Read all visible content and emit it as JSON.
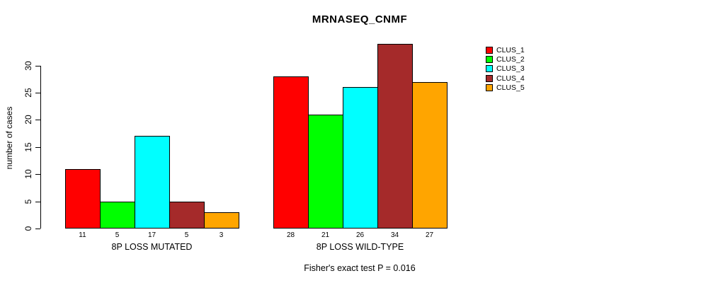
{
  "title": "MRNASEQ_CNMF",
  "caption": "Fisher's exact test P = 0.016",
  "chart_data": {
    "type": "bar",
    "title": "MRNASEQ_CNMF",
    "ylabel": "number of cases",
    "xlabel": "",
    "categories": [
      "8P LOSS MUTATED",
      "8P LOSS WILD-TYPE"
    ],
    "series": [
      {
        "name": "CLUS_1",
        "color": "#FF0000",
        "values": [
          11,
          28
        ]
      },
      {
        "name": "CLUS_2",
        "color": "#00FF00",
        "values": [
          5,
          21
        ]
      },
      {
        "name": "CLUS_3",
        "color": "#00FFFF",
        "values": [
          17,
          26
        ]
      },
      {
        "name": "CLUS_4",
        "color": "#A52A2A",
        "values": [
          5,
          34
        ]
      },
      {
        "name": "CLUS_5",
        "color": "#FFA500",
        "values": [
          3,
          27
        ]
      }
    ],
    "bar_value_labels": [
      [
        11,
        5,
        17,
        5,
        3
      ],
      [
        28,
        21,
        26,
        34,
        27
      ]
    ],
    "yticks": [
      0,
      5,
      10,
      15,
      20,
      25,
      30
    ],
    "ylim": [
      0,
      34
    ],
    "grid": false,
    "legend_position": "top-right",
    "legend_entries": [
      "CLUS_1",
      "CLUS_2",
      "CLUS_3",
      "CLUS_4",
      "CLUS_5"
    ],
    "annotation": "Fisher's exact test P = 0.016"
  }
}
